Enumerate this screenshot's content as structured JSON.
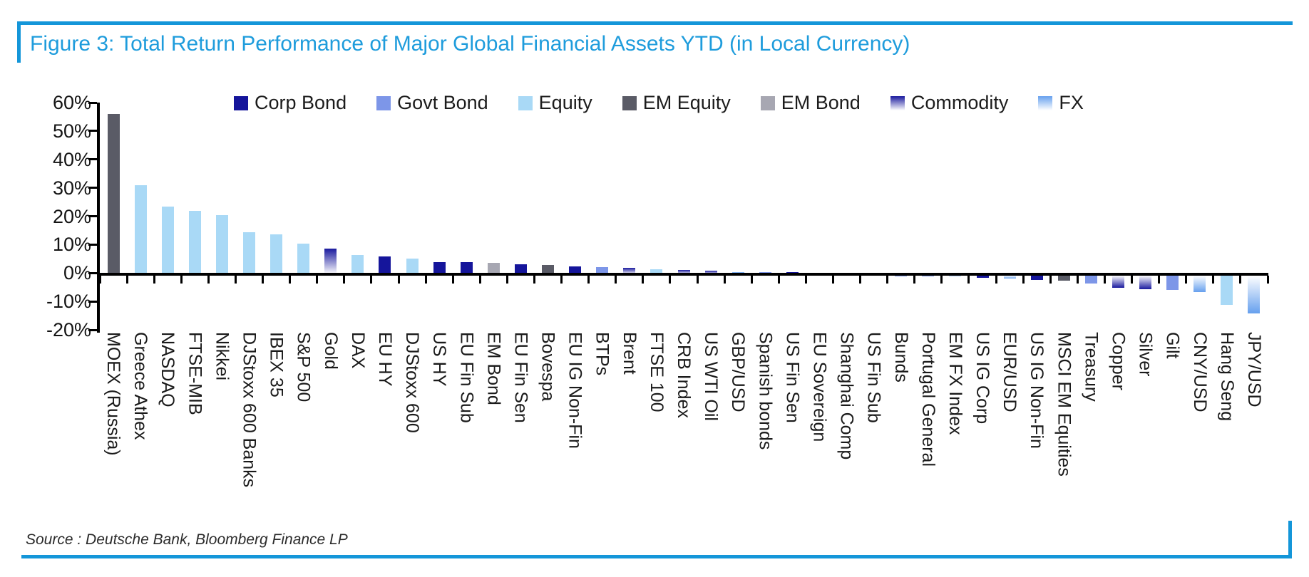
{
  "figure": {
    "title": "Figure 3: Total Return Performance of Major Global Financial Assets YTD (in Local Currency)",
    "source": "Source : Deutsche Bank, Bloomberg Finance LP",
    "accent_color": "#1E9CDC",
    "rule_color": "#1496D9"
  },
  "legend": [
    {
      "label": "Corp Bond",
      "type": "Corp Bond"
    },
    {
      "label": "Govt Bond",
      "type": "Govt Bond"
    },
    {
      "label": "Equity",
      "type": "Equity"
    },
    {
      "label": "EM Equity",
      "type": "EM Equity"
    },
    {
      "label": "EM Bond",
      "type": "EM Bond"
    },
    {
      "label": "Commodity",
      "type": "Commodity"
    },
    {
      "label": "FX",
      "type": "FX"
    }
  ],
  "chart_data": {
    "type": "bar",
    "title": "Total Return Performance of Major Global Financial Assets YTD (in Local Currency)",
    "xlabel": "",
    "ylabel": "",
    "ylim": [
      -20,
      60
    ],
    "y_tick_step": 10,
    "y_tick_labels": [
      "60%",
      "50%",
      "40%",
      "30%",
      "20%",
      "10%",
      "0%",
      "-10%",
      "-20%"
    ],
    "grid": false,
    "legend_position": "top",
    "colors": {
      "Corp Bond": "#15159B",
      "Govt Bond": "#7D96E8",
      "Equity": "#A9D9F6",
      "EM Equity": "#5A5B66",
      "EM Bond": "#A7A7B2",
      "Commodity": "#1A1A9E",
      "FX": "#66A0EE",
      "gradient_end": "#FFFFFF"
    },
    "gradient_types": [
      "Commodity",
      "FX"
    ],
    "categories": [
      {
        "label": "MOEX (Russia)",
        "value": 56.0,
        "type": "EM Equity"
      },
      {
        "label": "Greece Athex",
        "value": 31.0,
        "type": "Equity"
      },
      {
        "label": "NASDAQ",
        "value": 23.5,
        "type": "Equity"
      },
      {
        "label": "FTSE-MIB",
        "value": 21.8,
        "type": "Equity"
      },
      {
        "label": "Nikkei",
        "value": 20.5,
        "type": "Equity"
      },
      {
        "label": "DJStoxx 600 Banks",
        "value": 14.4,
        "type": "Equity"
      },
      {
        "label": "IBEX 35",
        "value": 13.6,
        "type": "Equity"
      },
      {
        "label": "S&P 500",
        "value": 10.4,
        "type": "Equity"
      },
      {
        "label": "Gold",
        "value": 8.7,
        "type": "Commodity"
      },
      {
        "label": "DAX",
        "value": 6.3,
        "type": "Equity"
      },
      {
        "label": "EU HY",
        "value": 5.9,
        "type": "Corp Bond"
      },
      {
        "label": "DJStoxx 600",
        "value": 5.1,
        "type": "Equity"
      },
      {
        "label": "US HY",
        "value": 3.8,
        "type": "Corp Bond"
      },
      {
        "label": "EU Fin Sub",
        "value": 3.7,
        "type": "Corp Bond"
      },
      {
        "label": "EM Bond",
        "value": 3.6,
        "type": "EM Bond"
      },
      {
        "label": "EU Fin Sen",
        "value": 3.1,
        "type": "Corp Bond"
      },
      {
        "label": "Bovespa",
        "value": 2.9,
        "type": "EM Equity"
      },
      {
        "label": "EU IG Non-Fin",
        "value": 2.2,
        "type": "Corp Bond"
      },
      {
        "label": "BTPs",
        "value": 2.0,
        "type": "Govt Bond"
      },
      {
        "label": "Brent",
        "value": 1.8,
        "type": "Commodity"
      },
      {
        "label": "FTSE 100",
        "value": 1.3,
        "type": "Equity"
      },
      {
        "label": "CRB Index",
        "value": 1.1,
        "type": "Commodity"
      },
      {
        "label": "US WTI Oil",
        "value": 0.9,
        "type": "Commodity"
      },
      {
        "label": "GBP/USD",
        "value": 0.4,
        "type": "FX"
      },
      {
        "label": "Spanish bonds",
        "value": 0.25,
        "type": "Govt Bond"
      },
      {
        "label": "US Fin Sen",
        "value": 0.2,
        "type": "Corp Bond"
      },
      {
        "label": "EU Sovereign",
        "value": 0.15,
        "type": "Govt Bond"
      },
      {
        "label": "Shanghai Comp",
        "value": 0.1,
        "type": "Equity"
      },
      {
        "label": "US Fin Sub",
        "value": 0.1,
        "type": "Corp Bond"
      },
      {
        "label": "Bunds",
        "value": -0.2,
        "type": "Govt Bond"
      },
      {
        "label": "Portugal General",
        "value": -0.5,
        "type": "Govt Bond"
      },
      {
        "label": "EM FX Index",
        "value": -0.8,
        "type": "FX"
      },
      {
        "label": "US IG Corp",
        "value": -1.2,
        "type": "Corp Bond"
      },
      {
        "label": "EUR/USD",
        "value": -1.4,
        "type": "FX"
      },
      {
        "label": "US IG Non-Fin",
        "value": -2.0,
        "type": "Corp Bond"
      },
      {
        "label": "MSCI EM Equities",
        "value": -2.1,
        "type": "EM Equity"
      },
      {
        "label": "Treasury",
        "value": -3.2,
        "type": "Govt Bond"
      },
      {
        "label": "Copper",
        "value": -4.7,
        "type": "Commodity"
      },
      {
        "label": "Silver",
        "value": -5.1,
        "type": "Commodity"
      },
      {
        "label": "Gilt",
        "value": -5.5,
        "type": "Govt Bond"
      },
      {
        "label": "CNY/USD",
        "value": -6.1,
        "type": "FX"
      },
      {
        "label": "Hang Seng",
        "value": -10.8,
        "type": "Equity"
      },
      {
        "label": "JPY/USD",
        "value": -13.8,
        "type": "FX"
      }
    ]
  }
}
